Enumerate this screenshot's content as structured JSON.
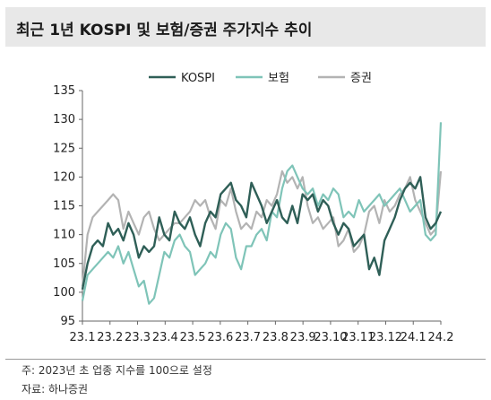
{
  "title": "최근 1년 KOSPI 및 보험/증권 주가지수 추이",
  "footnote": "주: 2023년 초 업종 지수를 100으로 설정",
  "source": "자료: 하나증권",
  "colors": {
    "kospi": "#2f5f57",
    "insurance": "#7fc4b8",
    "securities": "#b3b3b3"
  },
  "chart_data": {
    "type": "line",
    "title": "최근 1년 KOSPI 및 보험/증권 주가지수 추이",
    "xlabel": "",
    "ylabel": "",
    "ylim": [
      95,
      135
    ],
    "yticks": [
      95,
      100,
      105,
      110,
      115,
      120,
      125,
      130,
      135
    ],
    "x_tick_labels": [
      "23.1",
      "23.2",
      "23.3",
      "23.4",
      "23.5",
      "23.6",
      "23.7",
      "23.8",
      "23.9",
      "23.10",
      "23.11",
      "23.12",
      "24.1",
      "24.2"
    ],
    "x_index": [
      0,
      4,
      8,
      12,
      16,
      20,
      24,
      28,
      32,
      36,
      40,
      44,
      48,
      52,
      56,
      60,
      64,
      68,
      72,
      76,
      80,
      84,
      88,
      92,
      96,
      100,
      104,
      108,
      112,
      116,
      120,
      124,
      128,
      132,
      136,
      140,
      144,
      148,
      152,
      156,
      160,
      164,
      168,
      172,
      176,
      180,
      184,
      188,
      192,
      196,
      200,
      204,
      208,
      212,
      216,
      220,
      224,
      228,
      232,
      236,
      240,
      244,
      248,
      252,
      256,
      260,
      264,
      268,
      272,
      276,
      280
    ],
    "legend_position": "top-center",
    "grid": false,
    "series": [
      {
        "name": "KOSPI",
        "key": "kospi",
        "values": [
          100.5,
          105,
          108,
          109,
          108,
          112,
          110,
          111,
          109,
          112,
          110,
          106,
          108,
          107,
          108,
          113,
          110,
          109,
          114,
          112,
          111,
          113,
          110,
          108,
          112,
          114,
          113,
          117,
          118,
          119,
          116,
          115,
          113,
          119,
          117,
          115,
          112,
          114,
          116,
          113,
          112,
          115,
          112,
          117,
          116,
          117,
          114,
          116,
          115,
          112,
          110,
          112,
          111,
          108,
          109,
          110,
          104,
          106,
          103,
          109,
          111,
          113,
          116,
          118,
          119,
          118,
          120,
          113,
          111,
          112,
          114
        ]
      },
      {
        "name": "보험",
        "key": "insurance",
        "values": [
          98.5,
          103,
          104,
          105,
          106,
          107,
          106,
          108,
          105,
          107,
          104,
          101,
          102,
          98,
          99,
          103,
          107,
          106,
          109,
          110,
          108,
          107,
          103,
          104,
          105,
          107,
          106,
          110,
          112,
          111,
          106,
          104,
          108,
          108,
          110,
          111,
          109,
          114,
          113,
          118,
          121,
          122,
          120,
          118,
          117,
          118,
          115,
          117,
          116,
          118,
          117,
          113,
          114,
          113,
          116,
          114,
          115,
          116,
          117,
          115,
          116,
          117,
          118,
          116,
          114,
          115,
          116,
          110,
          109,
          110,
          129.5
        ]
      },
      {
        "name": "증권",
        "key": "securities",
        "values": [
          101,
          110,
          113,
          114,
          115,
          116,
          117,
          116,
          111,
          114,
          112,
          110,
          113,
          114,
          111,
          109,
          110,
          111,
          112,
          112,
          113,
          114,
          116,
          115,
          116,
          113,
          111,
          116,
          115,
          118,
          114,
          111,
          112,
          111,
          114,
          113,
          116,
          115,
          117,
          121,
          119,
          120,
          118,
          120,
          115,
          112,
          113,
          111,
          112,
          113,
          108,
          109,
          111,
          107,
          108,
          110,
          114,
          115,
          112,
          116,
          114,
          115,
          117,
          118,
          120,
          116,
          114,
          112,
          110,
          111,
          121
        ]
      }
    ]
  }
}
